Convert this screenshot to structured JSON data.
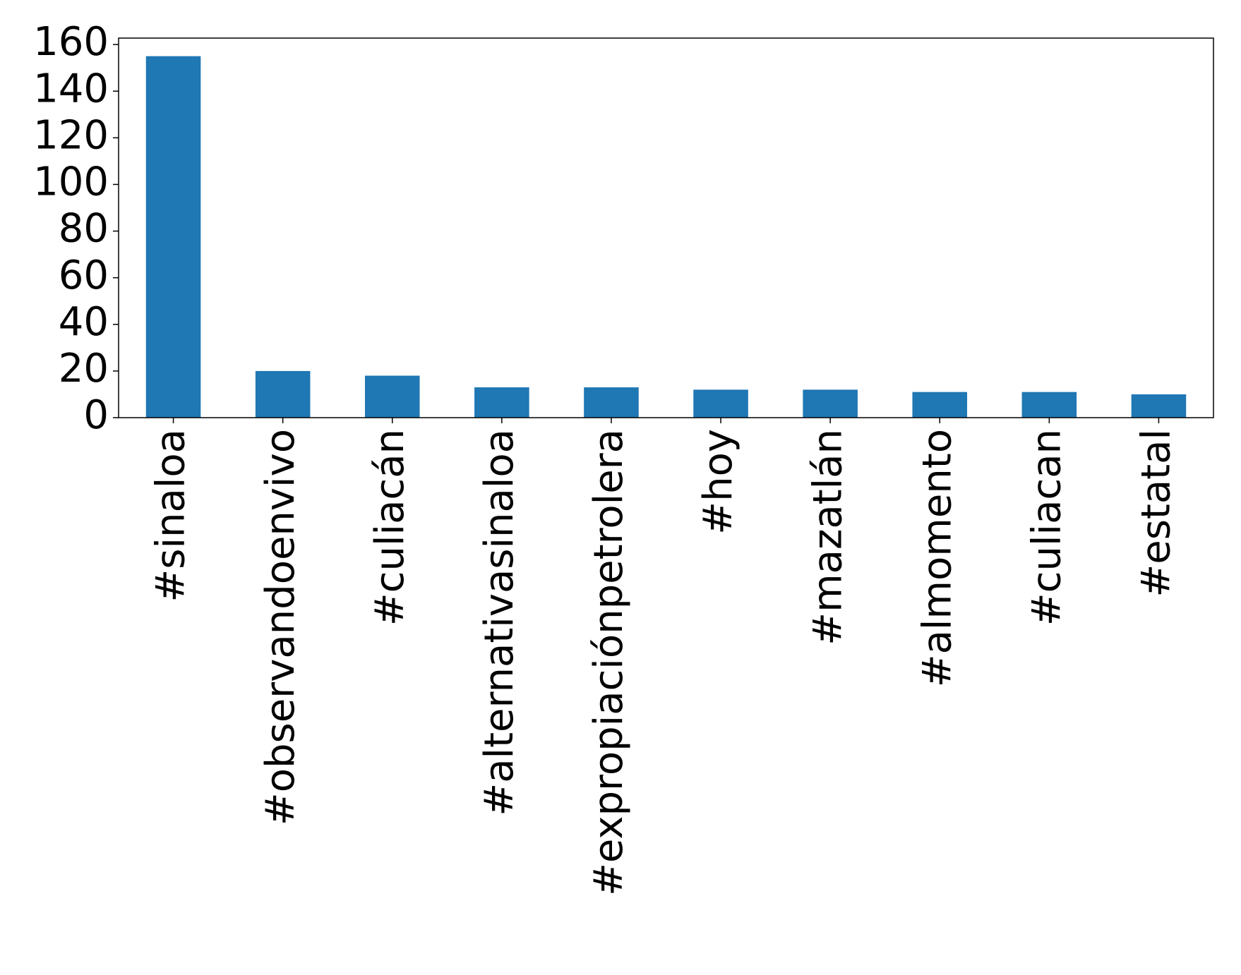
{
  "chart_data": {
    "type": "bar",
    "categories": [
      "#sinaloa",
      "#observandoenvivo",
      "#culiacán",
      "#alternativasinaloa",
      "#expropiaciónpetrolera",
      "#hoy",
      "#mazatlán",
      "#almomento",
      "#culiacan",
      "#estatal"
    ],
    "values": [
      155,
      20,
      18,
      13,
      13,
      12,
      12,
      11,
      11,
      10
    ],
    "color": "#1f77b4",
    "ylim": [
      0,
      162.75
    ],
    "yticks": [
      0,
      20,
      40,
      60,
      80,
      100,
      120,
      140,
      160
    ],
    "grid": false
  }
}
